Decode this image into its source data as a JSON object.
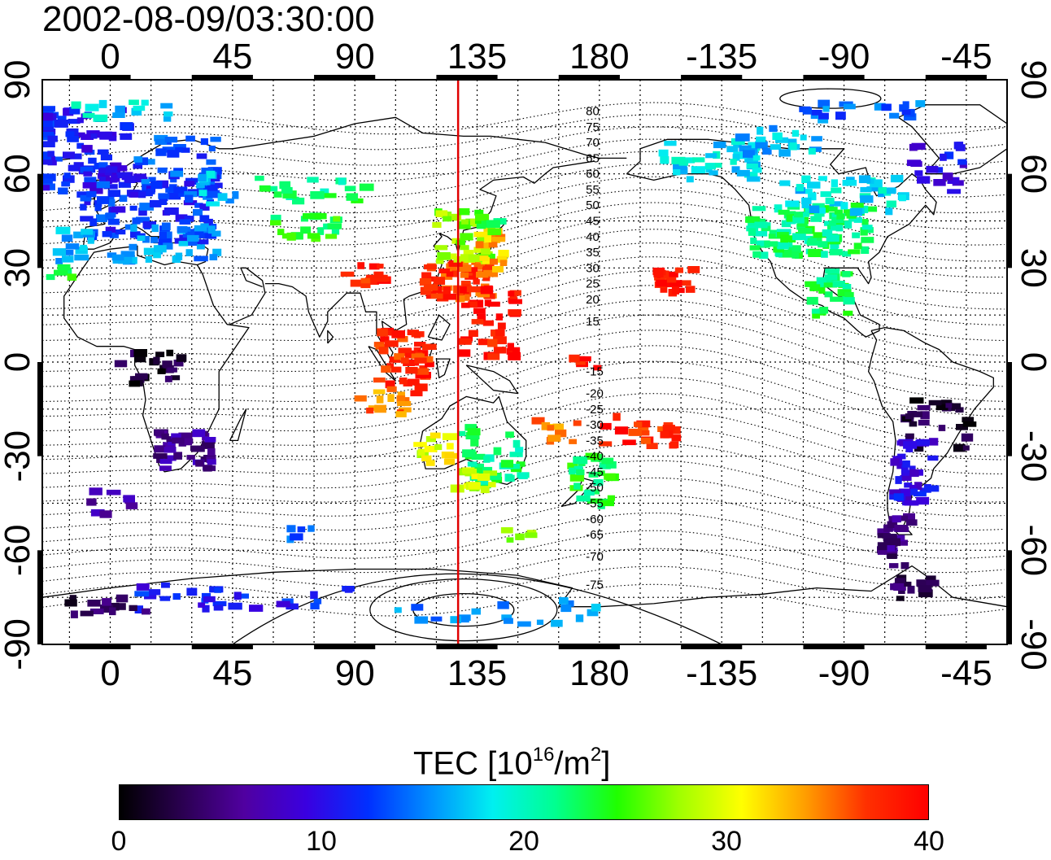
{
  "title": "2002-08-09/03:30:00",
  "map": {
    "lon_labels": [
      "0",
      "45",
      "90",
      "135",
      "180",
      "-135",
      "-90",
      "-45"
    ],
    "lat_labels": [
      "90",
      "60",
      "30",
      "0",
      "-30",
      "-60",
      "-90"
    ],
    "lon_range": [
      -25,
      330
    ],
    "lat_range": [
      -90,
      90
    ],
    "contour_labels": [
      {
        "text": "80",
        "lat": 80
      },
      {
        "text": "75",
        "lat": 75
      },
      {
        "text": "70",
        "lat": 70
      },
      {
        "text": "65",
        "lat": 65
      },
      {
        "text": "60",
        "lat": 60
      },
      {
        "text": "55",
        "lat": 55
      },
      {
        "text": "50",
        "lat": 50
      },
      {
        "text": "45",
        "lat": 45
      },
      {
        "text": "40",
        "lat": 40
      },
      {
        "text": "35",
        "lat": 35
      },
      {
        "text": "30",
        "lat": 30
      },
      {
        "text": "25",
        "lat": 25
      },
      {
        "text": "20",
        "lat": 20
      },
      {
        "text": "15",
        "lat": 13
      },
      {
        "text": "-15",
        "lat": -3
      },
      {
        "text": "-20",
        "lat": -10
      },
      {
        "text": "-25",
        "lat": -15
      },
      {
        "text": "-30",
        "lat": -20
      },
      {
        "text": "-35",
        "lat": -25
      },
      {
        "text": "-40",
        "lat": -30
      },
      {
        "text": "-45",
        "lat": -35
      },
      {
        "text": "-50",
        "lat": -40
      },
      {
        "text": "-55",
        "lat": -45
      },
      {
        "text": "-60",
        "lat": -50
      },
      {
        "text": "-65",
        "lat": -55
      },
      {
        "text": "-70",
        "lat": -62
      },
      {
        "text": "-75",
        "lat": -71
      }
    ],
    "meridian_lon": 128,
    "meridian_color": "#e00000"
  },
  "tec_clusters": [
    {
      "lon": -15,
      "lat": 67,
      "dlon": 22,
      "dlat": 14,
      "tec": 11,
      "n": 90
    },
    {
      "lon": 15,
      "lat": 50,
      "dlon": 25,
      "dlat": 12,
      "tec": 12,
      "n": 110
    },
    {
      "lon": 25,
      "lat": 62,
      "dlon": 15,
      "dlat": 10,
      "tec": 13,
      "n": 40
    },
    {
      "lon": 20,
      "lat": 38,
      "dlon": 20,
      "dlat": 6,
      "tec": 15,
      "n": 40
    },
    {
      "lon": -15,
      "lat": 38,
      "dlon": 8,
      "dlat": 6,
      "tec": 16,
      "n": 14
    },
    {
      "lon": -18,
      "lat": 30,
      "dlon": 4,
      "dlat": 3,
      "tec": 24,
      "n": 5
    },
    {
      "lon": 40,
      "lat": 55,
      "dlon": 8,
      "dlat": 5,
      "tec": 17,
      "n": 14
    },
    {
      "lon": 5,
      "lat": 80,
      "dlon": 18,
      "dlat": 3,
      "tec": 18,
      "n": 14
    },
    {
      "lon": 72,
      "lat": 43,
      "dlon": 12,
      "dlat": 4,
      "tec": 24,
      "n": 20
    },
    {
      "lon": 75,
      "lat": 55,
      "dlon": 22,
      "dlat": 4,
      "tec": 22,
      "n": 20
    },
    {
      "lon": 95,
      "lat": 28,
      "dlon": 8,
      "dlat": 4,
      "tec": 38,
      "n": 14
    },
    {
      "lon": 128,
      "lat": 26,
      "dlon": 12,
      "dlat": 6,
      "tec": 37,
      "n": 60
    },
    {
      "lon": 130,
      "lat": 40,
      "dlon": 10,
      "dlat": 8,
      "tec": 27,
      "n": 40
    },
    {
      "lon": 140,
      "lat": 35,
      "dlon": 5,
      "dlat": 7,
      "tec": 33,
      "n": 20
    },
    {
      "lon": 140,
      "lat": 44,
      "dlon": 4,
      "dlat": 3,
      "tec": 24,
      "n": 8
    },
    {
      "lon": 140,
      "lat": 12,
      "dlon": 10,
      "dlat": 12,
      "tec": 39,
      "n": 40
    },
    {
      "lon": 108,
      "lat": 0,
      "dlon": 10,
      "dlat": 10,
      "tec": 38,
      "n": 50
    },
    {
      "lon": 100,
      "lat": -13,
      "dlon": 10,
      "dlat": 4,
      "tec": 35,
      "n": 14
    },
    {
      "lon": 140,
      "lat": -30,
      "dlon": 12,
      "dlat": 10,
      "tec": 22,
      "n": 40
    },
    {
      "lon": 120,
      "lat": -28,
      "dlon": 6,
      "dlat": 5,
      "tec": 30,
      "n": 14
    },
    {
      "lon": 135,
      "lat": -37,
      "dlon": 8,
      "dlat": 4,
      "tec": 29,
      "n": 14
    },
    {
      "lon": 177,
      "lat": -38,
      "dlon": 8,
      "dlat": 8,
      "tec": 23,
      "n": 28
    },
    {
      "lon": 165,
      "lat": -22,
      "dlon": 8,
      "dlat": 4,
      "tec": 34,
      "n": 10
    },
    {
      "lon": 195,
      "lat": -22,
      "dlon": 14,
      "dlat": 5,
      "tec": 38,
      "n": 22
    },
    {
      "lon": 175,
      "lat": -1,
      "dlon": 5,
      "dlat": 3,
      "tec": 39,
      "n": 6
    },
    {
      "lon": 208,
      "lat": 26,
      "dlon": 7,
      "dlat": 4,
      "tec": 39,
      "n": 24
    },
    {
      "lon": 258,
      "lat": 42,
      "dlon": 22,
      "dlat": 8,
      "tec": 22,
      "n": 110
    },
    {
      "lon": 270,
      "lat": 53,
      "dlon": 22,
      "dlat": 6,
      "tec": 18,
      "n": 40
    },
    {
      "lon": 265,
      "lat": 22,
      "dlon": 8,
      "dlat": 7,
      "tec": 23,
      "n": 28
    },
    {
      "lon": 220,
      "lat": 64,
      "dlon": 18,
      "dlat": 6,
      "tec": 18,
      "n": 40
    },
    {
      "lon": 245,
      "lat": 70,
      "dlon": 15,
      "dlat": 5,
      "tec": 17,
      "n": 22
    },
    {
      "lon": 280,
      "lat": 80,
      "dlon": 25,
      "dlat": 3,
      "tec": 14,
      "n": 20
    },
    {
      "lon": 305,
      "lat": 62,
      "dlon": 10,
      "dlat": 8,
      "tec": 10,
      "n": 20
    },
    {
      "lon": 305,
      "lat": -20,
      "dlon": 12,
      "dlat": 8,
      "tec": 2,
      "n": 28
    },
    {
      "lon": 295,
      "lat": -35,
      "dlon": 8,
      "dlat": 10,
      "tec": 10,
      "n": 40
    },
    {
      "lon": 290,
      "lat": -57,
      "dlon": 6,
      "dlat": 8,
      "tec": 5,
      "n": 28
    },
    {
      "lon": 295,
      "lat": -72,
      "dlon": 8,
      "dlat": 4,
      "tec": 3,
      "n": 14
    },
    {
      "lon": 15,
      "lat": -2,
      "dlon": 12,
      "dlat": 5,
      "tec": 2,
      "n": 24
    },
    {
      "lon": 28,
      "lat": -28,
      "dlon": 10,
      "dlat": 6,
      "tec": 6,
      "n": 40
    },
    {
      "lon": 0,
      "lat": -45,
      "dlon": 8,
      "dlat": 4,
      "tec": 6,
      "n": 8
    },
    {
      "lon": 50,
      "lat": -75,
      "dlon": 40,
      "dlat": 4,
      "tec": 11,
      "n": 30
    },
    {
      "lon": 0,
      "lat": -78,
      "dlon": 15,
      "dlat": 3,
      "tec": 3,
      "n": 14
    },
    {
      "lon": 140,
      "lat": -80,
      "dlon": 40,
      "dlat": 4,
      "tec": 15,
      "n": 20
    },
    {
      "lon": 70,
      "lat": -55,
      "dlon": 4,
      "dlat": 2,
      "tec": 14,
      "n": 5
    },
    {
      "lon": 150,
      "lat": -55,
      "dlon": 6,
      "dlat": 2,
      "tec": 27,
      "n": 5
    }
  ],
  "colorbar": {
    "title_main": "TEC  [10",
    "title_exp1": "16",
    "title_mid": "/m",
    "title_exp2": "2",
    "title_end": "]",
    "min": 0,
    "max": 40,
    "ticks": [
      "0",
      "10",
      "20",
      "30",
      "40"
    ],
    "colors": [
      "#000000",
      "#2a0050",
      "#5000a0",
      "#3a00e0",
      "#0030ff",
      "#0090ff",
      "#00f0f0",
      "#00ff90",
      "#20ff00",
      "#a0ff00",
      "#ffff00",
      "#ffa000",
      "#ff3000",
      "#ff0000"
    ]
  }
}
